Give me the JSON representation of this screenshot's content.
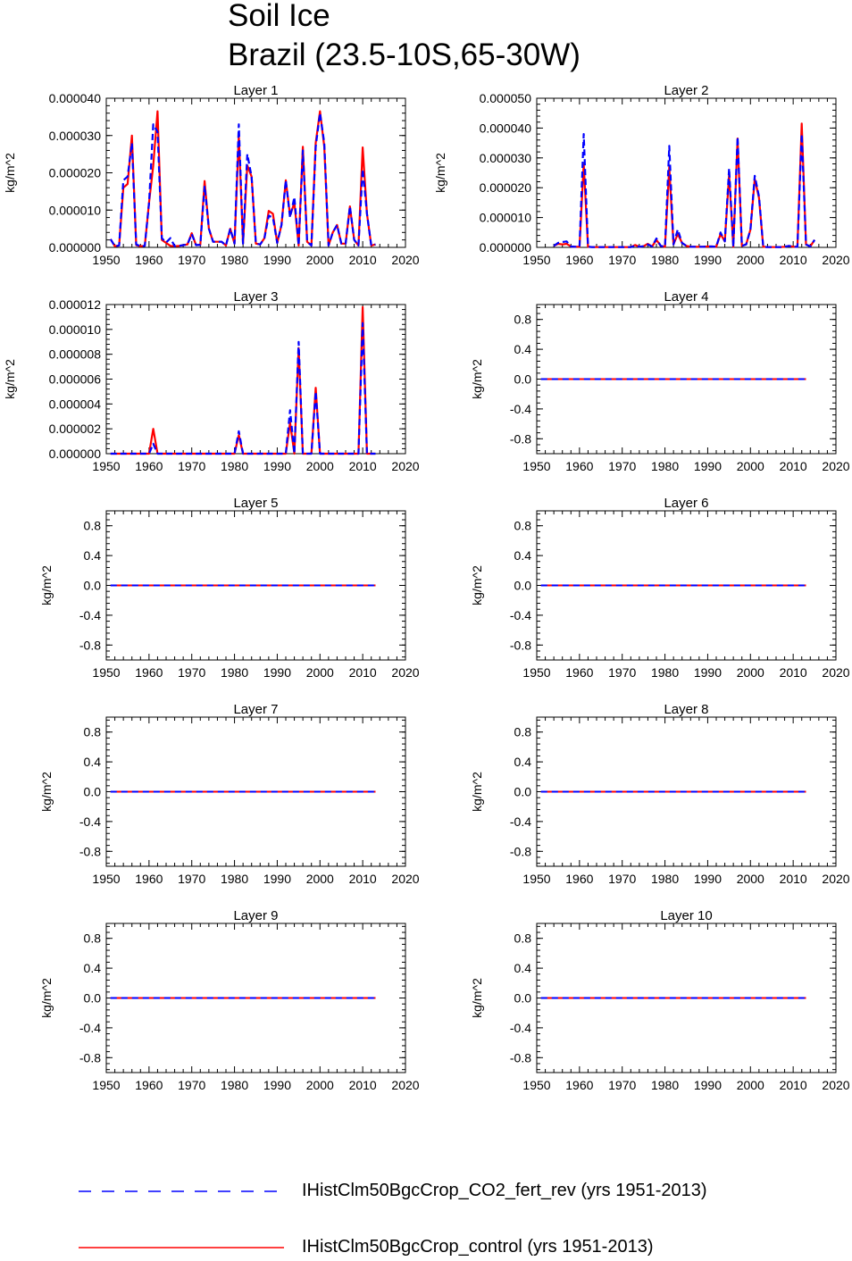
{
  "title_lines": [
    "Soil Ice",
    "Brazil (23.5-10S,65-30W)"
  ],
  "legend": [
    {
      "label": "IHistClm50BgcCrop_CO2_fert_rev (yrs 1951-2013)",
      "color": "#0000ff",
      "dash": "dashed"
    },
    {
      "label": "IHistClm50BgcCrop_control (yrs 1951-2013)",
      "color": "#ff0000",
      "dash": "solid"
    }
  ],
  "chart_data": [
    {
      "type": "line",
      "title": "Layer 1",
      "ylabel": "kg/m^2",
      "xlim": [
        1950,
        2020
      ],
      "ylim": [
        0,
        4e-05
      ],
      "xticks": [
        "1950",
        "1960",
        "1970",
        "1980",
        "1990",
        "2000",
        "2010",
        "2020"
      ],
      "yticks": [
        "0.000000",
        "0.000010",
        "0.000020",
        "0.000030",
        "0.000040"
      ],
      "x_start": 1951,
      "series": [
        {
          "name": "IHistClm50BgcCrop_CO2_fert_rev (yrs 1951-2013)",
          "color": "#0000ff",
          "dash": true,
          "values": [
            2.2e-06,
            3e-07,
            5e-07,
            1.8e-05,
            1.9e-05,
            2.8e-05,
            8e-07,
            3e-07,
            4e-07,
            1.2e-05,
            3.3e-05,
            3.1e-05,
            2.5e-06,
            1.3e-06,
            2.5e-06,
            3e-07,
            4e-07,
            6e-07,
            8e-07,
            3.6e-06,
            6e-07,
            7e-07,
            1.65e-05,
            5e-06,
            1.5e-06,
            1.5e-06,
            1.5e-06,
            5e-07,
            5e-06,
            1e-06,
            3.3e-05,
            1e-06,
            2.5e-05,
            1.9e-05,
            1e-06,
            8e-07,
            2.5e-06,
            8.5e-06,
            8e-06,
            1.2e-06,
            6e-06,
            1.8e-05,
            8e-06,
            1.35e-05,
            5e-07,
            2.6e-05,
            1.5e-06,
            5e-07,
            2.7e-05,
            3.6e-05,
            2.8e-05,
            5e-07,
            4e-06,
            6e-06,
            1e-06,
            1e-06,
            1.1e-05,
            2e-06,
            5e-07,
            2.1e-05,
            9e-06,
            5e-07,
            8e-07
          ]
        },
        {
          "name": "IHistClm50BgcCrop_control (yrs 1951-2013)",
          "color": "#ff0000",
          "dash": false,
          "values": [
            2.2e-06,
            3e-07,
            5e-07,
            1.6e-05,
            1.7e-05,
            3e-05,
            6e-07,
            3e-07,
            4e-07,
            1.2e-05,
            2.2e-05,
            3.65e-05,
            2e-06,
            1.2e-06,
            4e-07,
            3e-07,
            4e-07,
            6e-07,
            8e-07,
            3.8e-06,
            6e-07,
            7e-07,
            1.78e-05,
            5e-06,
            1.5e-06,
            1.5e-06,
            1.5e-06,
            5e-07,
            5e-06,
            1e-06,
            3e-05,
            1e-06,
            2.2e-05,
            1.9e-05,
            1e-06,
            8e-07,
            2.5e-06,
            9.8e-06,
            9e-06,
            1.2e-06,
            6e-06,
            1.8e-05,
            8.5e-06,
            1.2e-05,
            5e-07,
            2.7e-05,
            1.5e-06,
            5e-07,
            2.8e-05,
            3.65e-05,
            2.7e-05,
            5e-07,
            4e-06,
            6e-06,
            1e-06,
            1e-06,
            1.1e-05,
            2e-06,
            5e-07,
            2.68e-05,
            9e-06,
            5e-07,
            8e-07
          ]
        }
      ]
    },
    {
      "type": "line",
      "title": "Layer 2",
      "ylabel": "kg/m^2",
      "xlim": [
        1950,
        2020
      ],
      "ylim": [
        0,
        5e-05
      ],
      "xticks": [
        "1950",
        "1960",
        "1970",
        "1980",
        "1990",
        "2000",
        "2010",
        "2020"
      ],
      "yticks": [
        "0.000000",
        "0.000010",
        "0.000020",
        "0.000030",
        "0.000040",
        "0.000050"
      ],
      "x_start": 1954,
      "series": [
        {
          "name": "IHistClm50BgcCrop_CO2_fert_rev (yrs 1951-2013)",
          "color": "#0000ff",
          "dash": true,
          "values": [
            5e-07,
            1.5e-06,
            1.8e-06,
            2e-06,
            3e-07,
            2e-07,
            2e-07,
            3.8e-05,
            2e-07,
            1e-07,
            1e-07,
            1e-07,
            1e-07,
            1e-07,
            1e-07,
            1e-07,
            1e-07,
            1e-07,
            1e-07,
            5e-07,
            2e-07,
            4e-07,
            1e-06,
            3e-07,
            3e-06,
            5e-07,
            2e-07,
            3.4e-05,
            1e-06,
            6e-06,
            1.5e-06,
            5e-07,
            2e-07,
            2e-07,
            2e-07,
            2e-07,
            3e-07,
            3e-07,
            2e-07,
            5e-06,
            2e-06,
            2.65e-05,
            2e-07,
            3.7e-05,
            5e-07,
            1e-06,
            6e-06,
            2.4e-05,
            1.7e-05,
            2e-07,
            1e-07,
            1e-07,
            1e-07,
            1e-07,
            2e-07,
            5e-07,
            2e-07,
            2e-07,
            3.8e-05,
            1e-06,
            3e-07,
            2.5e-06
          ]
        },
        {
          "name": "IHistClm50BgcCrop_control (yrs 1951-2013)",
          "color": "#ff0000",
          "dash": false,
          "values": [
            5e-07,
            1.2e-06,
            1e-06,
            1.2e-06,
            3e-07,
            2e-07,
            2e-07,
            2.8e-05,
            2e-07,
            1e-07,
            1e-07,
            1e-07,
            1e-07,
            1e-07,
            1e-07,
            1e-07,
            1e-07,
            1e-07,
            1e-07,
            8e-07,
            2e-07,
            4e-07,
            1.2e-06,
            3e-07,
            2.5e-06,
            5e-07,
            2e-07,
            2.7e-05,
            1e-06,
            4.5e-06,
            1.5e-06,
            5e-07,
            2e-07,
            2e-07,
            2e-07,
            2e-07,
            3e-07,
            3e-07,
            2e-07,
            4.5e-06,
            2e-06,
            2.45e-05,
            2e-07,
            3.65e-05,
            5e-07,
            1e-06,
            6e-06,
            2.3e-05,
            1.65e-05,
            2e-07,
            1e-07,
            1e-07,
            1e-07,
            1e-07,
            2e-07,
            5e-07,
            2e-07,
            2e-07,
            4.15e-05,
            1e-06,
            3e-07,
            2.5e-06
          ]
        }
      ]
    },
    {
      "type": "line",
      "title": "Layer 3",
      "ylabel": "kg/m^2",
      "xlim": [
        1950,
        2020
      ],
      "ylim": [
        0,
        1.2e-05
      ],
      "xticks": [
        "1950",
        "1960",
        "1970",
        "1980",
        "1990",
        "2000",
        "2010",
        "2020"
      ],
      "yticks": [
        "0.000000",
        "0.000002",
        "0.000004",
        "0.000006",
        "0.000008",
        "0.000010",
        "0.000012"
      ],
      "x_start": 1951,
      "series": [
        {
          "name": "IHistClm50BgcCrop_CO2_fert_rev (yrs 1951-2013)",
          "color": "#0000ff",
          "dash": true,
          "values": [
            0,
            0,
            0,
            0,
            0,
            0,
            0,
            0,
            0,
            0,
            8e-07,
            0,
            0,
            0,
            0,
            0,
            0,
            0,
            0,
            0,
            0,
            0,
            0,
            0,
            0,
            0,
            0,
            0,
            0,
            0,
            1.8e-06,
            0,
            0,
            0,
            0,
            0,
            0,
            0,
            0,
            0,
            0,
            0,
            3.5e-06,
            0,
            9e-06,
            0,
            0,
            0,
            5e-06,
            0,
            0,
            0,
            0,
            0,
            0,
            0,
            0,
            0,
            0,
            1.05e-05,
            0,
            0,
            0
          ]
        },
        {
          "name": "IHistClm50BgcCrop_control (yrs 1951-2013)",
          "color": "#ff0000",
          "dash": false,
          "values": [
            0,
            0,
            0,
            0,
            0,
            0,
            0,
            0,
            0,
            0,
            2e-06,
            0,
            0,
            0,
            0,
            0,
            0,
            0,
            0,
            0,
            0,
            0,
            0,
            0,
            0,
            0,
            0,
            0,
            0,
            0,
            1.5e-06,
            0,
            0,
            0,
            0,
            0,
            0,
            0,
            0,
            0,
            0,
            0,
            2.5e-06,
            0,
            8.5e-06,
            0,
            0,
            0,
            5.3e-06,
            0,
            0,
            0,
            0,
            0,
            0,
            0,
            0,
            0,
            0,
            1.18e-05,
            0,
            0,
            0
          ]
        }
      ]
    },
    {
      "type": "line",
      "title": "Layer 4",
      "ylabel": "kg/m^2",
      "xlim": [
        1950,
        2020
      ],
      "ylim": [
        -1,
        1
      ],
      "xticks": [
        "1950",
        "1960",
        "1970",
        "1980",
        "1990",
        "2000",
        "2010",
        "2020"
      ],
      "yticks": [
        "0.8",
        "0.4",
        "0.0",
        "-0.4",
        "-0.8"
      ],
      "x_range": [
        1951,
        2013
      ],
      "constant_value": 0
    },
    {
      "type": "line",
      "title": "Layer 5",
      "ylabel": "kg/m^2",
      "xlim": [
        1950,
        2020
      ],
      "ylim": [
        -1,
        1
      ],
      "xticks": [
        "1950",
        "1960",
        "1970",
        "1980",
        "1990",
        "2000",
        "2010",
        "2020"
      ],
      "yticks": [
        "0.8",
        "0.4",
        "0.0",
        "-0.4",
        "-0.8"
      ],
      "x_range": [
        1951,
        2013
      ],
      "constant_value": 0
    },
    {
      "type": "line",
      "title": "Layer 6",
      "ylabel": "kg/m^2",
      "xlim": [
        1950,
        2020
      ],
      "ylim": [
        -1,
        1
      ],
      "xticks": [
        "1950",
        "1960",
        "1970",
        "1980",
        "1990",
        "2000",
        "2010",
        "2020"
      ],
      "yticks": [
        "0.8",
        "0.4",
        "0.0",
        "-0.4",
        "-0.8"
      ],
      "x_range": [
        1951,
        2013
      ],
      "constant_value": 0
    },
    {
      "type": "line",
      "title": "Layer 7",
      "ylabel": "kg/m^2",
      "xlim": [
        1950,
        2020
      ],
      "ylim": [
        -1,
        1
      ],
      "xticks": [
        "1950",
        "1960",
        "1970",
        "1980",
        "1990",
        "2000",
        "2010",
        "2020"
      ],
      "yticks": [
        "0.8",
        "0.4",
        "0.0",
        "-0.4",
        "-0.8"
      ],
      "x_range": [
        1951,
        2013
      ],
      "constant_value": 0
    },
    {
      "type": "line",
      "title": "Layer 8",
      "ylabel": "kg/m^2",
      "xlim": [
        1950,
        2020
      ],
      "ylim": [
        -1,
        1
      ],
      "xticks": [
        "1950",
        "1960",
        "1970",
        "1980",
        "1990",
        "2000",
        "2010",
        "2020"
      ],
      "yticks": [
        "0.8",
        "0.4",
        "0.0",
        "-0.4",
        "-0.8"
      ],
      "x_range": [
        1951,
        2013
      ],
      "constant_value": 0
    },
    {
      "type": "line",
      "title": "Layer 9",
      "ylabel": "kg/m^2",
      "xlim": [
        1950,
        2020
      ],
      "ylim": [
        -1,
        1
      ],
      "xticks": [
        "1950",
        "1960",
        "1970",
        "1980",
        "1990",
        "2000",
        "2010",
        "2020"
      ],
      "yticks": [
        "0.8",
        "0.4",
        "0.0",
        "-0.4",
        "-0.8"
      ],
      "x_range": [
        1951,
        2013
      ],
      "constant_value": 0
    },
    {
      "type": "line",
      "title": "Layer 10",
      "ylabel": "kg/m^2",
      "xlim": [
        1950,
        2020
      ],
      "ylim": [
        -1,
        1
      ],
      "xticks": [
        "1950",
        "1960",
        "1970",
        "1980",
        "1990",
        "2000",
        "2010",
        "2020"
      ],
      "yticks": [
        "0.8",
        "0.4",
        "0.0",
        "-0.4",
        "-0.8"
      ],
      "x_range": [
        1951,
        2013
      ],
      "constant_value": 0
    }
  ]
}
